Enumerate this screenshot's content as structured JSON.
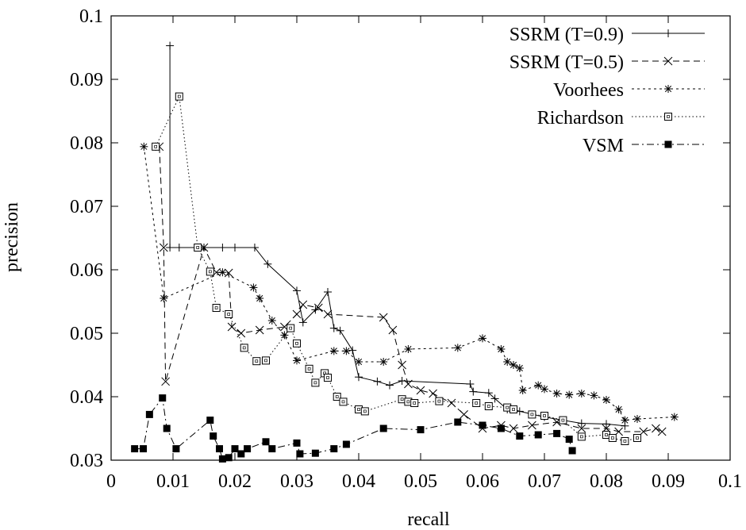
{
  "chart_data": {
    "type": "line",
    "title": "",
    "xlabel": "recall",
    "ylabel": "precision",
    "xlim": [
      0,
      0.1
    ],
    "ylim": [
      0.03,
      0.1
    ],
    "xticks": [
      "0",
      "0.01",
      "0.02",
      "0.03",
      "0.04",
      "0.05",
      "0.06",
      "0.07",
      "0.08",
      "0.09",
      "0.1"
    ],
    "yticks": [
      "0.03",
      "0.04",
      "0.05",
      "0.06",
      "0.07",
      "0.08",
      "0.09",
      "0.1"
    ],
    "grid": false,
    "legend_position": "top-right",
    "series": [
      {
        "name": "SSRM (T=0.9)",
        "marker": "plus",
        "dash": "solid",
        "points": [
          [
            0.0095,
            0.0953
          ],
          [
            0.0095,
            0.0635
          ],
          [
            0.011,
            0.0635
          ],
          [
            0.014,
            0.0635
          ],
          [
            0.015,
            0.0635
          ],
          [
            0.018,
            0.0635
          ],
          [
            0.02,
            0.0635
          ],
          [
            0.0232,
            0.0635
          ],
          [
            0.0253,
            0.0609
          ],
          [
            0.03,
            0.0567
          ],
          [
            0.031,
            0.0517
          ],
          [
            0.033,
            0.0537
          ],
          [
            0.035,
            0.0565
          ],
          [
            0.036,
            0.0508
          ],
          [
            0.037,
            0.0504
          ],
          [
            0.039,
            0.0473
          ],
          [
            0.04,
            0.0431
          ],
          [
            0.043,
            0.0424
          ],
          [
            0.045,
            0.0418
          ],
          [
            0.047,
            0.0425
          ],
          [
            0.058,
            0.042
          ],
          [
            0.0585,
            0.0408
          ],
          [
            0.061,
            0.0406
          ],
          [
            0.062,
            0.0397
          ],
          [
            0.064,
            0.038
          ],
          [
            0.066,
            0.0377
          ],
          [
            0.07,
            0.0368
          ],
          [
            0.076,
            0.0358
          ],
          [
            0.08,
            0.0357
          ],
          [
            0.083,
            0.0354
          ]
        ]
      },
      {
        "name": "SSRM (T=0.5)",
        "marker": "x",
        "dash": "dashed",
        "points": [
          [
            0.0078,
            0.0794
          ],
          [
            0.0085,
            0.0635
          ],
          [
            0.0088,
            0.0424
          ],
          [
            0.015,
            0.0635
          ],
          [
            0.017,
            0.0596
          ],
          [
            0.019,
            0.0595
          ],
          [
            0.0195,
            0.051
          ],
          [
            0.021,
            0.05
          ],
          [
            0.024,
            0.0505
          ],
          [
            0.028,
            0.051
          ],
          [
            0.03,
            0.053
          ],
          [
            0.031,
            0.0545
          ],
          [
            0.0335,
            0.054
          ],
          [
            0.035,
            0.053
          ],
          [
            0.044,
            0.0525
          ],
          [
            0.0455,
            0.0505
          ],
          [
            0.047,
            0.045
          ],
          [
            0.048,
            0.042
          ],
          [
            0.05,
            0.041
          ],
          [
            0.052,
            0.0405
          ],
          [
            0.055,
            0.039
          ],
          [
            0.057,
            0.0372
          ],
          [
            0.06,
            0.035
          ],
          [
            0.063,
            0.0355
          ],
          [
            0.065,
            0.035
          ],
          [
            0.068,
            0.0355
          ],
          [
            0.072,
            0.036
          ],
          [
            0.076,
            0.035
          ],
          [
            0.08,
            0.035
          ],
          [
            0.082,
            0.0345
          ],
          [
            0.086,
            0.0345
          ],
          [
            0.088,
            0.035
          ],
          [
            0.089,
            0.0345
          ]
        ]
      },
      {
        "name": "Voorhees",
        "marker": "star",
        "dash": "dotted",
        "points": [
          [
            0.0053,
            0.0794
          ],
          [
            0.0085,
            0.0555
          ],
          [
            0.018,
            0.0596
          ],
          [
            0.023,
            0.0572
          ],
          [
            0.024,
            0.0555
          ],
          [
            0.026,
            0.052
          ],
          [
            0.028,
            0.0497
          ],
          [
            0.03,
            0.0457
          ],
          [
            0.036,
            0.0472
          ],
          [
            0.038,
            0.0472
          ],
          [
            0.04,
            0.0455
          ],
          [
            0.044,
            0.0455
          ],
          [
            0.048,
            0.0475
          ],
          [
            0.056,
            0.0477
          ],
          [
            0.06,
            0.0492
          ],
          [
            0.063,
            0.0475
          ],
          [
            0.064,
            0.0455
          ],
          [
            0.065,
            0.045
          ],
          [
            0.066,
            0.0445
          ],
          [
            0.0665,
            0.041
          ],
          [
            0.069,
            0.0418
          ],
          [
            0.07,
            0.0412
          ],
          [
            0.072,
            0.0405
          ],
          [
            0.074,
            0.0403
          ],
          [
            0.076,
            0.0405
          ],
          [
            0.078,
            0.0402
          ],
          [
            0.08,
            0.0395
          ],
          [
            0.082,
            0.038
          ],
          [
            0.083,
            0.0363
          ],
          [
            0.085,
            0.0365
          ],
          [
            0.091,
            0.0368
          ]
        ]
      },
      {
        "name": "Richardson",
        "marker": "square",
        "dash": "fine-dotted",
        "points": [
          [
            0.0072,
            0.0794
          ],
          [
            0.011,
            0.0873
          ],
          [
            0.014,
            0.0635
          ],
          [
            0.016,
            0.0597
          ],
          [
            0.017,
            0.054
          ],
          [
            0.019,
            0.053
          ],
          [
            0.0215,
            0.0477
          ],
          [
            0.0235,
            0.0456
          ],
          [
            0.025,
            0.0457
          ],
          [
            0.029,
            0.0508
          ],
          [
            0.03,
            0.0484
          ],
          [
            0.032,
            0.0444
          ],
          [
            0.033,
            0.0422
          ],
          [
            0.0345,
            0.0437
          ],
          [
            0.035,
            0.043
          ],
          [
            0.0365,
            0.04
          ],
          [
            0.0375,
            0.0392
          ],
          [
            0.04,
            0.038
          ],
          [
            0.041,
            0.0377
          ],
          [
            0.047,
            0.0396
          ],
          [
            0.048,
            0.0392
          ],
          [
            0.049,
            0.039
          ],
          [
            0.053,
            0.0393
          ],
          [
            0.059,
            0.039
          ],
          [
            0.061,
            0.0385
          ],
          [
            0.064,
            0.0383
          ],
          [
            0.065,
            0.038
          ],
          [
            0.068,
            0.0372
          ],
          [
            0.07,
            0.037
          ],
          [
            0.073,
            0.0363
          ],
          [
            0.076,
            0.0337
          ],
          [
            0.08,
            0.034
          ],
          [
            0.081,
            0.0335
          ],
          [
            0.083,
            0.033
          ],
          [
            0.085,
            0.0335
          ]
        ]
      },
      {
        "name": "VSM",
        "marker": "filled-square",
        "dash": "dash-dot",
        "points": [
          [
            0.0038,
            0.0318
          ],
          [
            0.0052,
            0.0318
          ],
          [
            0.0062,
            0.0372
          ],
          [
            0.0083,
            0.0398
          ],
          [
            0.009,
            0.035
          ],
          [
            0.0105,
            0.0318
          ],
          [
            0.016,
            0.0363
          ],
          [
            0.0165,
            0.0338
          ],
          [
            0.0175,
            0.0318
          ],
          [
            0.018,
            0.0302
          ],
          [
            0.019,
            0.0304
          ],
          [
            0.02,
            0.0318
          ],
          [
            0.021,
            0.031
          ],
          [
            0.022,
            0.0318
          ],
          [
            0.025,
            0.0329
          ],
          [
            0.026,
            0.0318
          ],
          [
            0.03,
            0.0327
          ],
          [
            0.0305,
            0.031
          ],
          [
            0.033,
            0.0311
          ],
          [
            0.036,
            0.0318
          ],
          [
            0.038,
            0.0325
          ],
          [
            0.044,
            0.035
          ],
          [
            0.05,
            0.0348
          ],
          [
            0.056,
            0.036
          ],
          [
            0.06,
            0.0355
          ],
          [
            0.063,
            0.035
          ],
          [
            0.066,
            0.0338
          ],
          [
            0.069,
            0.034
          ],
          [
            0.072,
            0.0342
          ],
          [
            0.074,
            0.0333
          ],
          [
            0.0745,
            0.0315
          ]
        ]
      }
    ]
  }
}
